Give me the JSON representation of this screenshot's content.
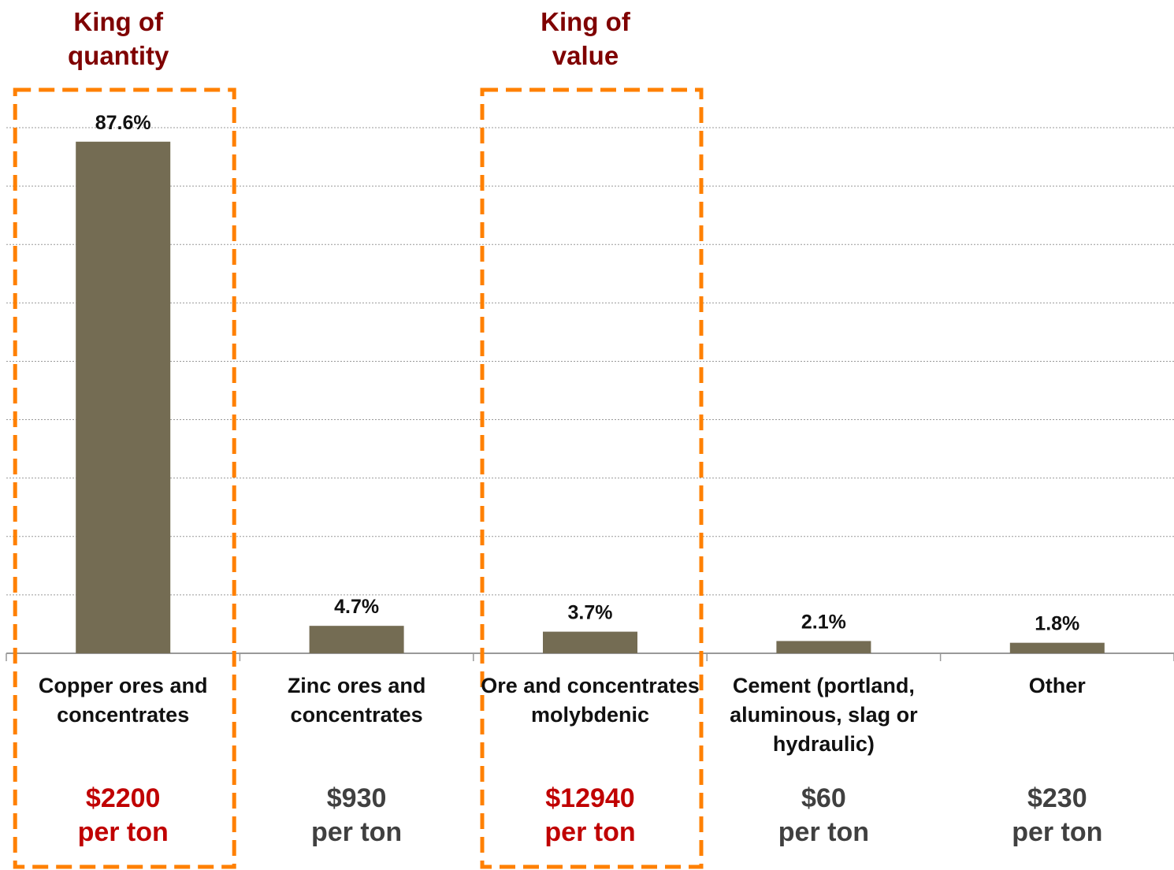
{
  "chart_data": {
    "type": "bar",
    "categories": [
      "Copper ores and concentrates",
      "Zinc ores and concentrates",
      "Ore and concentrates molybdenic",
      "Cement (portland, aluminous, slag or hydraulic)",
      "Other"
    ],
    "values": [
      87.6,
      4.7,
      3.7,
      2.1,
      1.8
    ],
    "value_labels": [
      "87.6%",
      "4.7%",
      "3.7%",
      "2.1%",
      "1.8%"
    ],
    "color": "#746c53",
    "ylim": [
      0,
      90
    ],
    "yticks": [
      0,
      10,
      20,
      30,
      40,
      50,
      60,
      70,
      80,
      90
    ],
    "grid": true,
    "prices": [
      "$2200",
      "$930",
      "$12940",
      "$60",
      "$230"
    ],
    "price_unit": "per ton",
    "annotations": [
      {
        "text": "King of quantity",
        "category": 0
      },
      {
        "text": "King of value",
        "category": 2
      }
    ],
    "annotation_color": "#7f0000",
    "highlight_color": "#c00000",
    "highlight_box_color": "#ff8000",
    "price_color": "#404040"
  }
}
